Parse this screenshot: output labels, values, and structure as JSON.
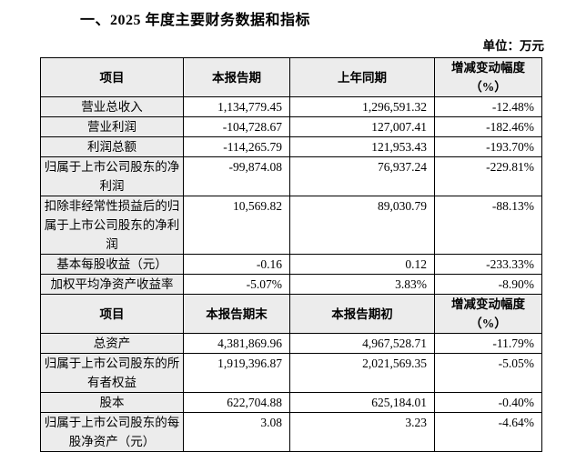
{
  "page": {
    "title": "一、2025 年度主要财务数据和指标",
    "unit_label": "单位：万元"
  },
  "table1": {
    "headers": [
      "项目",
      "本报告期",
      "上年同期",
      "增减变动幅度\n（%）"
    ],
    "rows": [
      [
        "营业总收入",
        "1,134,779.45",
        "1,296,591.32",
        "-12.48%"
      ],
      [
        "营业利润",
        "-104,728.67",
        "127,007.41",
        "-182.46%"
      ],
      [
        "利润总额",
        "-114,265.79",
        "121,953.43",
        "-193.70%"
      ],
      [
        "归属于上市公司股东的净利润",
        "-99,874.08",
        "76,937.24",
        "-229.81%"
      ],
      [
        "扣除非经常性损益后的归属于上市公司股东的净利润",
        "10,569.82",
        "89,030.79",
        "-88.13%"
      ],
      [
        "基本每股收益（元）",
        "-0.16",
        "0.12",
        "-233.33%"
      ],
      [
        "加权平均净资产收益率",
        "-5.07%",
        "3.83%",
        "-8.90%"
      ]
    ]
  },
  "table2": {
    "headers": [
      "项目",
      "本报告期末",
      "本报告期初",
      "增减变动幅度\n（%）"
    ],
    "rows": [
      [
        "总资产",
        "4,381,869.96",
        "4,967,528.71",
        "-11.79%"
      ],
      [
        "归属于上市公司股东的所有者权益",
        "1,919,396.87",
        "2,021,569.35",
        "-5.05%"
      ],
      [
        "股本",
        "622,704.88",
        "625,184.01",
        "-0.40%"
      ],
      [
        "归属于上市公司股东的每股净资产（元）",
        "3.08",
        "3.23",
        "-4.64%"
      ]
    ]
  }
}
